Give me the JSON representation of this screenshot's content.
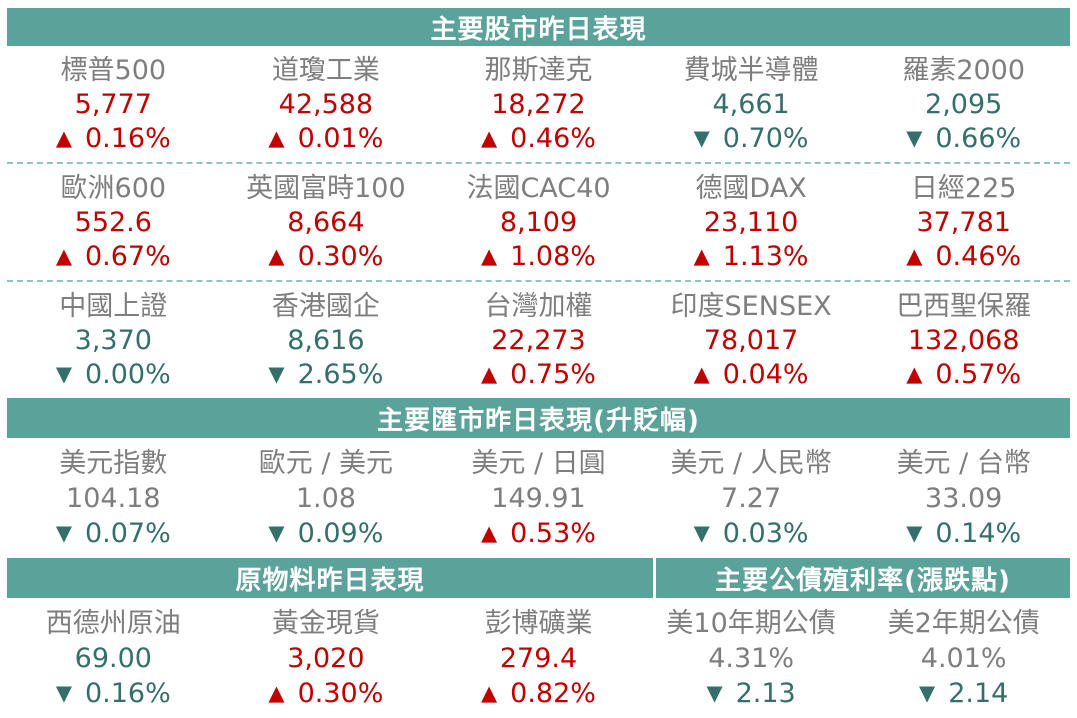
{
  "palette": {
    "header_bg": "#5BA29B",
    "header_text": "#FFFFFF",
    "up_red": "#C00000",
    "down_teal": "#347069",
    "neutral_gray": "#7E7E7E",
    "dashed_divider": "#8FC4BF"
  },
  "chart_data": [
    {
      "type": "table",
      "title": "主要股市昨日表現",
      "rows": [
        [
          {
            "name": "標普500",
            "value": "5,777",
            "value_dir": "up",
            "dir": "up",
            "change": "0.16%"
          },
          {
            "name": "道瓊工業",
            "value": "42,588",
            "value_dir": "up",
            "dir": "up",
            "change": "0.01%"
          },
          {
            "name": "那斯達克",
            "value": "18,272",
            "value_dir": "up",
            "dir": "up",
            "change": "0.46%"
          },
          {
            "name": "費城半導體",
            "value": "4,661",
            "value_dir": "down",
            "dir": "down",
            "change": "0.70%"
          },
          {
            "name": "羅素2000",
            "value": "2,095",
            "value_dir": "down",
            "dir": "down",
            "change": "0.66%"
          }
        ],
        [
          {
            "name": "歐洲600",
            "value": "552.6",
            "value_dir": "up",
            "dir": "up",
            "change": "0.67%"
          },
          {
            "name": "英國富時100",
            "value": "8,664",
            "value_dir": "up",
            "dir": "up",
            "change": "0.30%"
          },
          {
            "name": "法國CAC40",
            "value": "8,109",
            "value_dir": "up",
            "dir": "up",
            "change": "1.08%"
          },
          {
            "name": "德國DAX",
            "value": "23,110",
            "value_dir": "up",
            "dir": "up",
            "change": "1.13%"
          },
          {
            "name": "日經225",
            "value": "37,781",
            "value_dir": "up",
            "dir": "up",
            "change": "0.46%"
          }
        ],
        [
          {
            "name": "中國上證",
            "value": "3,370",
            "value_dir": "down",
            "dir": "down",
            "change": "0.00%"
          },
          {
            "name": "香港國企",
            "value": "8,616",
            "value_dir": "down",
            "dir": "down",
            "change": "2.65%"
          },
          {
            "name": "台灣加權",
            "value": "22,273",
            "value_dir": "up",
            "dir": "up",
            "change": "0.75%"
          },
          {
            "name": "印度SENSEX",
            "value": "78,017",
            "value_dir": "up",
            "dir": "up",
            "change": "0.04%"
          },
          {
            "name": "巴西聖保羅",
            "value": "132,068",
            "value_dir": "up",
            "dir": "up",
            "change": "0.57%"
          }
        ]
      ]
    },
    {
      "type": "table",
      "title": "主要匯市昨日表現(升貶幅)",
      "rows": [
        [
          {
            "name": "美元指數",
            "value": "104.18",
            "value_dir": "neutral",
            "dir": "down",
            "change": "0.07%"
          },
          {
            "name": "歐元 / 美元",
            "value": "1.08",
            "value_dir": "neutral",
            "dir": "down",
            "change": "0.09%"
          },
          {
            "name": "美元 / 日圓",
            "value": "149.91",
            "value_dir": "neutral",
            "dir": "up",
            "change": "0.53%"
          },
          {
            "name": "美元 / 人民幣",
            "value": "7.27",
            "value_dir": "neutral",
            "dir": "down",
            "change": "0.03%"
          },
          {
            "name": "美元 / 台幣",
            "value": "33.09",
            "value_dir": "neutral",
            "dir": "down",
            "change": "0.14%"
          }
        ]
      ]
    },
    {
      "type": "table",
      "title": "原物料昨日表現",
      "rows": [
        [
          {
            "name": "西德州原油",
            "value": "69.00",
            "value_dir": "down",
            "dir": "down",
            "change": "0.16%"
          },
          {
            "name": "黃金現貨",
            "value": "3,020",
            "value_dir": "up",
            "dir": "up",
            "change": "0.30%"
          },
          {
            "name": "彭博礦業",
            "value": "279.4",
            "value_dir": "up",
            "dir": "up",
            "change": "0.82%"
          }
        ]
      ]
    },
    {
      "type": "table",
      "title": "主要公債殖利率(漲跌點)",
      "rows": [
        [
          {
            "name": "美10年期公債",
            "value": "4.31%",
            "value_dir": "neutral",
            "dir": "down",
            "change": "2.13"
          },
          {
            "name": "美2年期公債",
            "value": "4.01%",
            "value_dir": "neutral",
            "dir": "down",
            "change": "2.14"
          }
        ]
      ]
    }
  ]
}
